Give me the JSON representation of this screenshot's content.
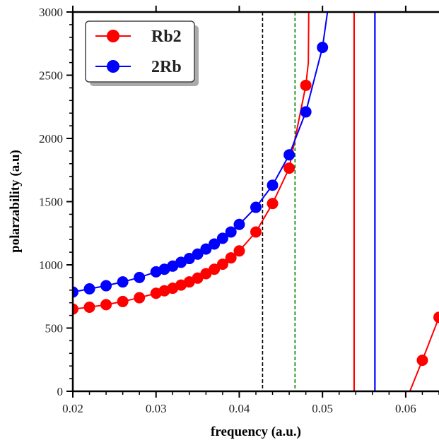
{
  "chart_data": {
    "type": "line",
    "xlabel": "frequency (a.u.)",
    "ylabel": "polarzability (a.u)",
    "xlim": [
      0.02,
      0.064
    ],
    "ylim": [
      0,
      3000
    ],
    "xticks": [
      {
        "value": 0.02,
        "label": "0.02"
      },
      {
        "value": 0.03,
        "label": "0.03"
      },
      {
        "value": 0.04,
        "label": "0.04"
      },
      {
        "value": 0.05,
        "label": "0.05"
      },
      {
        "value": 0.06,
        "label": "0.06"
      }
    ],
    "yticks": [
      {
        "value": 0,
        "label": "0"
      },
      {
        "value": 500,
        "label": "500"
      },
      {
        "value": 1000,
        "label": "1000"
      },
      {
        "value": 1500,
        "label": "1500"
      },
      {
        "value": 2000,
        "label": "2000"
      },
      {
        "value": 2500,
        "label": "2500"
      },
      {
        "value": 3000,
        "label": "3000"
      }
    ],
    "legend_position": "top-left",
    "grid": false,
    "series": [
      {
        "name": "Rb2",
        "color": "#ff0000",
        "x": [
          0.02,
          0.022,
          0.024,
          0.026,
          0.028,
          0.03,
          0.031,
          0.032,
          0.033,
          0.034,
          0.035,
          0.036,
          0.037,
          0.038,
          0.039,
          0.04,
          0.042,
          0.044,
          0.046,
          0.048
        ],
        "y": [
          650,
          665,
          685,
          710,
          740,
          775,
          795,
          815,
          840,
          865,
          895,
          930,
          965,
          1005,
          1055,
          1110,
          1260,
          1485,
          1765,
          2420
        ],
        "line_only": {
          "x": [
            0.0483,
            0.04835
          ],
          "y": [
            2600,
            3000
          ]
        }
      },
      {
        "name": "2Rb",
        "color": "#0000ff",
        "x": [
          0.02,
          0.022,
          0.024,
          0.026,
          0.028,
          0.03,
          0.031,
          0.032,
          0.033,
          0.034,
          0.035,
          0.036,
          0.037,
          0.038,
          0.039,
          0.04,
          0.042,
          0.044,
          0.046,
          0.048,
          0.05
        ],
        "y": [
          785,
          810,
          835,
          865,
          900,
          945,
          965,
          990,
          1020,
          1050,
          1085,
          1125,
          1165,
          1210,
          1260,
          1320,
          1455,
          1630,
          1870,
          2210,
          2720
        ],
        "line_only": {
          "x": [
            0.0506
          ],
          "y": [
            3000
          ]
        }
      },
      {
        "name": "",
        "color": "#ff0000",
        "x": [
          0.062,
          0.064
        ],
        "y": [
          245,
          585
        ],
        "line_only": {
          "x": [
            0.0605
          ],
          "y": [
            0
          ]
        }
      }
    ],
    "vertical_lines": [
      {
        "x": 0.0428,
        "color": "#000000",
        "style": "dashed"
      },
      {
        "x": 0.0467,
        "color": "#008000",
        "style": "dashed"
      },
      {
        "x": 0.0538,
        "color": "#ff0000",
        "style": "solid"
      },
      {
        "x": 0.0563,
        "color": "#0000ff",
        "style": "solid"
      }
    ]
  }
}
